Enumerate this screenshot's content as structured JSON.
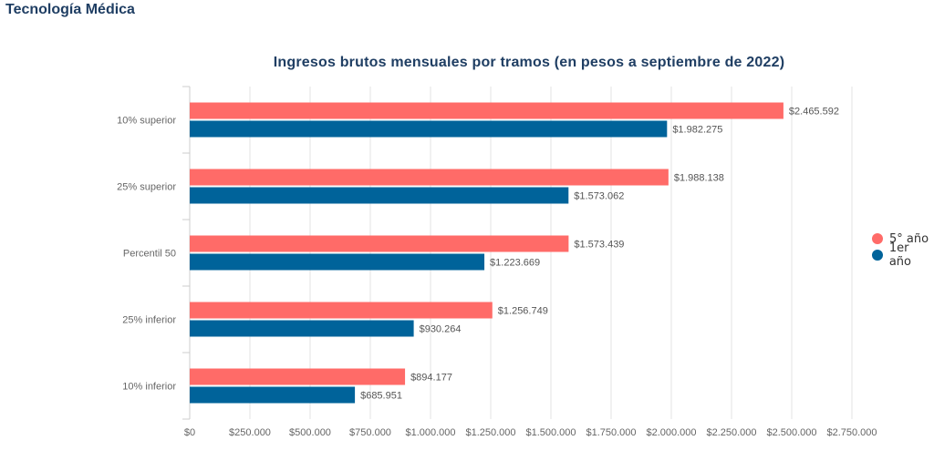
{
  "page": {
    "header": "Tecnología Médica"
  },
  "colors": {
    "series_5": "#ff6b68",
    "series_1": "#00639a",
    "grid": "#e3e3e3",
    "axis": "#cccccc",
    "tick_text": "#666666",
    "label_text": "#555555",
    "title": "#1f3e63"
  },
  "chart_data": {
    "type": "bar",
    "orientation": "horizontal",
    "title": "Ingresos brutos mensuales por tramos (en pesos a septiembre de 2022)",
    "categories": [
      "10% superior",
      "25% superior",
      "Percentil 50",
      "25% inferior",
      "10% inferior"
    ],
    "series": [
      {
        "name": "5° año",
        "color": "#ff6b68",
        "values": [
          2465592,
          1988138,
          1573439,
          1256749,
          894177
        ],
        "labels": [
          "$2.465.592",
          "$1.988.138",
          "$1.573.439",
          "$1.256.749",
          "$894.177"
        ]
      },
      {
        "name": "1er año",
        "color": "#00639a",
        "values": [
          1982275,
          1573062,
          1223669,
          930264,
          685951
        ],
        "labels": [
          "$1.982.275",
          "$1.573.062",
          "$1.223.669",
          "$930.264",
          "$685.951"
        ]
      }
    ],
    "xlim": [
      0,
      2750000
    ],
    "xticks": [
      0,
      250000,
      500000,
      750000,
      1000000,
      1250000,
      1500000,
      1750000,
      2000000,
      2250000,
      2500000,
      2750000
    ],
    "xtick_labels": [
      "$0",
      "$250.000",
      "$500.000",
      "$750.000",
      "$1.000.000",
      "$1.250.000",
      "$1.500.000",
      "$1.750.000",
      "$2.000.000",
      "$2.250.000",
      "$2.500.000",
      "$2.750.000"
    ],
    "grid": true,
    "legend_position": "right"
  }
}
